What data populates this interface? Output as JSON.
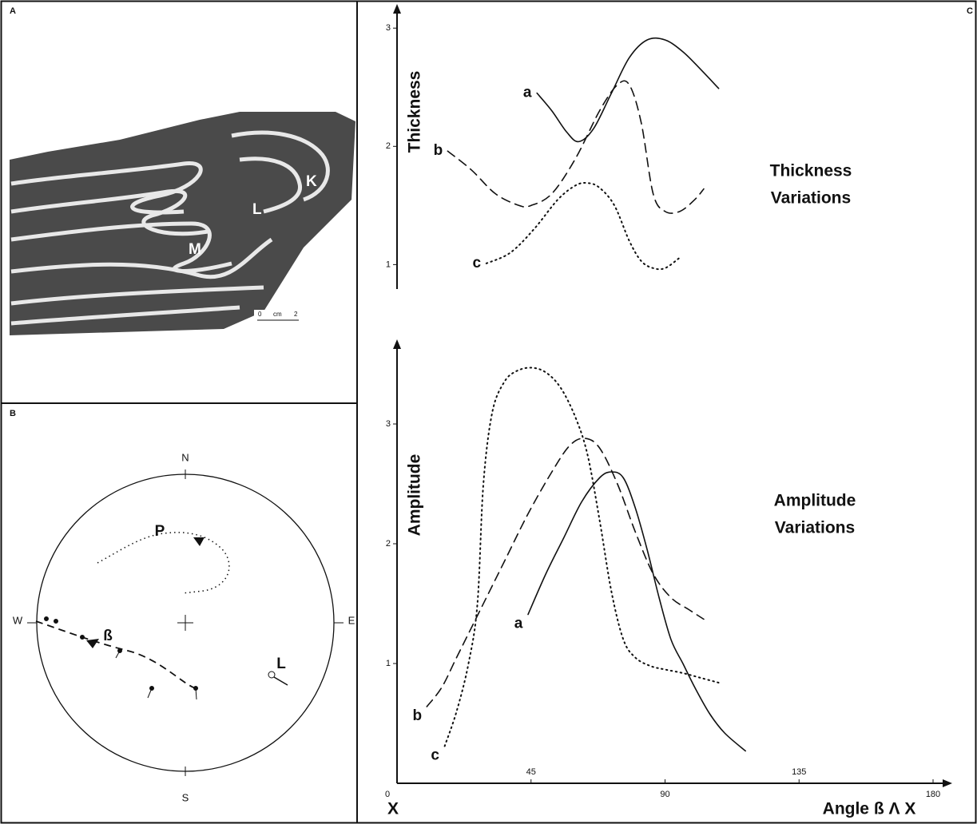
{
  "figure": {
    "panels": {
      "A": {
        "letter": "A",
        "labels": [
          "K",
          "L",
          "M"
        ],
        "scale_bar": [
          "0",
          "cm",
          "2"
        ]
      },
      "B": {
        "letter": "B",
        "directions": [
          "N",
          "E",
          "S",
          "W"
        ],
        "labels": [
          "P",
          "ß",
          "L"
        ]
      },
      "C": {
        "letter": "C"
      }
    }
  },
  "chart_data": [
    {
      "type": "line",
      "ylabel": "Thickness",
      "annotation": [
        "Thickness",
        "Variations"
      ],
      "xlim": [
        0,
        180
      ],
      "ylim": [
        0.8,
        3.15
      ],
      "yticks": [
        1,
        2,
        3
      ],
      "series": [
        {
          "name": "a",
          "color": "#111111",
          "style": "solid",
          "x": [
            47,
            52,
            57,
            61,
            66,
            72,
            78,
            84,
            90,
            96,
            102,
            108
          ],
          "values": [
            2.45,
            2.3,
            2.12,
            2.04,
            2.15,
            2.45,
            2.75,
            2.9,
            2.9,
            2.8,
            2.65,
            2.49
          ]
        },
        {
          "name": "b",
          "color": "#111111",
          "style": "dashed",
          "x": [
            17,
            25,
            33,
            41,
            45,
            52,
            60,
            68,
            74,
            78,
            82,
            86,
            90,
            95,
            100,
            103
          ],
          "values": [
            1.96,
            1.8,
            1.6,
            1.5,
            1.5,
            1.6,
            1.9,
            2.3,
            2.52,
            2.52,
            2.2,
            1.6,
            1.45,
            1.45,
            1.55,
            1.64
          ]
        },
        {
          "name": "c",
          "color": "#111111",
          "style": "dotted",
          "x": [
            30,
            38,
            46,
            54,
            60,
            64,
            68,
            73,
            78,
            82,
            86,
            90,
            95
          ],
          "values": [
            1.01,
            1.1,
            1.3,
            1.55,
            1.67,
            1.69,
            1.65,
            1.5,
            1.2,
            1.03,
            0.97,
            0.97,
            1.06
          ]
        }
      ]
    },
    {
      "type": "line",
      "ylabel": "Amplitude",
      "xlabel": "Angle ß Λ X",
      "origin_label": "X",
      "annotation": [
        "Amplitude",
        "Variations"
      ],
      "xlim": [
        0,
        180
      ],
      "ylim": [
        0,
        3.7
      ],
      "xticks": [
        0,
        45,
        90,
        135,
        180
      ],
      "yticks": [
        1,
        2,
        3
      ],
      "series": [
        {
          "name": "a",
          "color": "#111111",
          "style": "solid",
          "x": [
            44,
            50,
            56,
            62,
            68,
            72,
            76,
            80,
            84,
            88,
            92,
            96,
            100,
            105,
            110,
            117
          ],
          "values": [
            1.41,
            1.75,
            2.05,
            2.35,
            2.55,
            2.6,
            2.55,
            2.3,
            1.95,
            1.55,
            1.2,
            1.0,
            0.8,
            0.58,
            0.42,
            0.27
          ]
        },
        {
          "name": "b",
          "color": "#111111",
          "style": "dashed",
          "x": [
            10,
            15,
            20,
            28,
            36,
            44,
            52,
            58,
            63,
            68,
            74,
            80,
            86,
            92,
            98,
            103
          ],
          "values": [
            0.64,
            0.8,
            1.05,
            1.45,
            1.85,
            2.25,
            2.6,
            2.82,
            2.88,
            2.8,
            2.5,
            2.1,
            1.75,
            1.55,
            1.45,
            1.37
          ]
        },
        {
          "name": "c",
          "color": "#111111",
          "style": "dotted",
          "x": [
            16,
            20,
            24,
            27,
            29,
            32,
            36,
            40,
            45,
            50,
            55,
            60,
            64,
            68,
            72,
            76,
            80,
            85,
            90,
            96,
            102,
            108
          ],
          "values": [
            0.31,
            0.6,
            1.0,
            1.5,
            2.5,
            3.1,
            3.35,
            3.44,
            3.47,
            3.43,
            3.3,
            3.05,
            2.74,
            2.2,
            1.6,
            1.2,
            1.05,
            0.98,
            0.95,
            0.92,
            0.88,
            0.84
          ]
        }
      ]
    }
  ]
}
